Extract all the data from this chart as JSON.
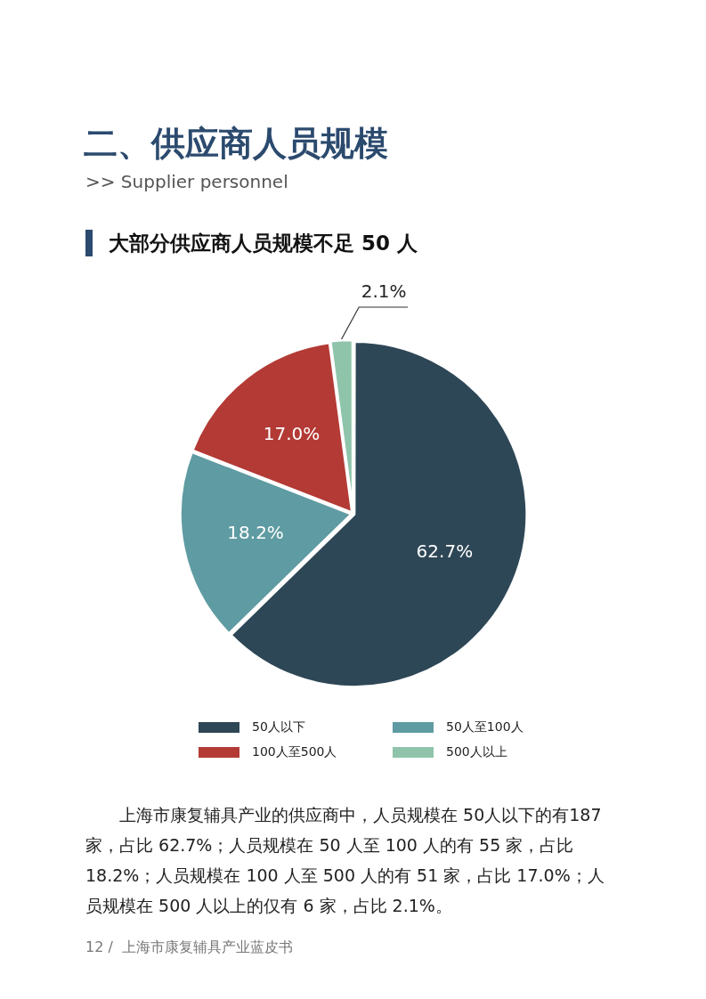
{
  "chart_data": {
    "type": "pie",
    "title": "二、供应商人员规模",
    "subtitle": ">> Supplier personnel",
    "annotations": [
      "大部分供应商人员规模不足 50 人",
      "上海市康复辅具产业的供应商中，人员规模在 50人以下的有187家，占比 62.7%；人员规模在 50 人至 100 人的有 55 家，占比 18.2%；人员规模在 100 人至 500 人的有 51 家，占比 17.0%；人员规模在 500 人以上的仅有 6 家，占比 2.1%。",
      "12 /  上海市康复辅具产业蓝皮书"
    ],
    "categories": [
      "50人以下",
      "50人至100人",
      "100人至500人",
      "500人以上"
    ],
    "values": [
      62.7,
      18.2,
      17.0,
      2.1
    ],
    "colors": [
      "#2e4756",
      "#5f9ba2",
      "#b33a35",
      "#8fc4ab"
    ],
    "value_labels": [
      "62.7%",
      "18.2%",
      "17.0%",
      "2.1%"
    ],
    "legend": "bottom"
  }
}
